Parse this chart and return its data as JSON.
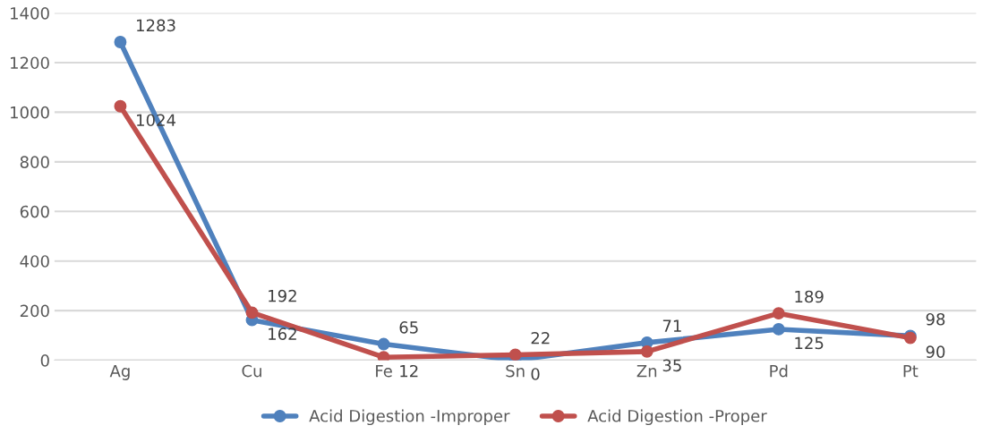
{
  "chart_data": {
    "type": "line",
    "categories": [
      "Ag",
      "Cu",
      "Fe",
      "Sn",
      "Zn",
      "Pd",
      "Pt"
    ],
    "series": [
      {
        "name": "Acid Digestion -Improper",
        "color": "#4f81bd",
        "values": [
          1283,
          162,
          65,
          0,
          71,
          125,
          98
        ]
      },
      {
        "name": "Acid Digestion -Proper",
        "color": "#c0504d",
        "values": [
          1024,
          192,
          12,
          22,
          35,
          189,
          90
        ]
      }
    ],
    "ylim": [
      0,
      1400
    ],
    "yticks": [
      0,
      200,
      400,
      600,
      800,
      1000,
      1200,
      1400
    ],
    "grid": "y",
    "legend": "bottom",
    "marker": "circle",
    "line_style": "solid",
    "data_labels": true
  }
}
